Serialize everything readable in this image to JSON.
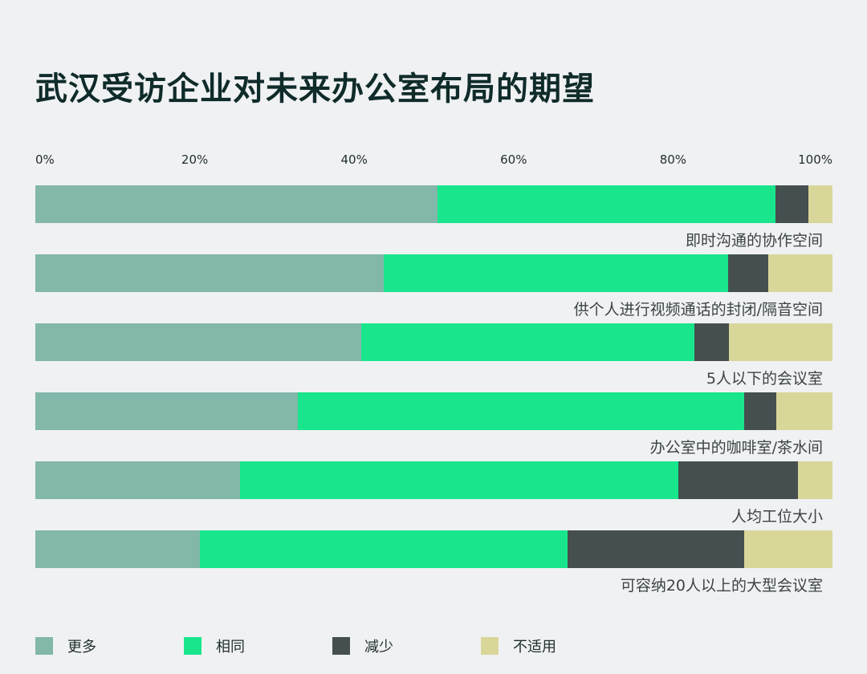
{
  "chart_data": {
    "type": "bar",
    "orientation": "horizontal",
    "stacked": true,
    "title": "武汉受访企业对未来办公室布局的期望",
    "tick_labels": [
      "0%",
      "20%",
      "40%",
      "60%",
      "80%",
      "100%"
    ],
    "xlim": [
      0,
      100
    ],
    "legend_placement": "bottom",
    "grid": false,
    "categories": [
      "即时沟通的协作空间",
      "供个人进行视频通话的封闭/隔音空间",
      "5人以下的会议室",
      "办公室中的咖啡室/茶水间",
      "人均工位大小",
      "可容纳20人以上的大型会议室"
    ],
    "series": [
      {
        "name": "更多",
        "color": "#82b7aa",
        "values": [
          50.5,
          43.7,
          40.9,
          32.9,
          25.7,
          20.6
        ]
      },
      {
        "name": "相同",
        "color": "#19e68c",
        "values": [
          42.4,
          43.2,
          41.8,
          56.0,
          55.0,
          46.2
        ]
      },
      {
        "name": "减少",
        "color": "#454f4f",
        "values": [
          4.1,
          5.0,
          4.3,
          4.1,
          15.0,
          22.1
        ]
      },
      {
        "name": "不适用",
        "color": "#d9d69a",
        "values": [
          3.0,
          8.1,
          13.0,
          7.0,
          4.3,
          11.1
        ]
      }
    ]
  }
}
